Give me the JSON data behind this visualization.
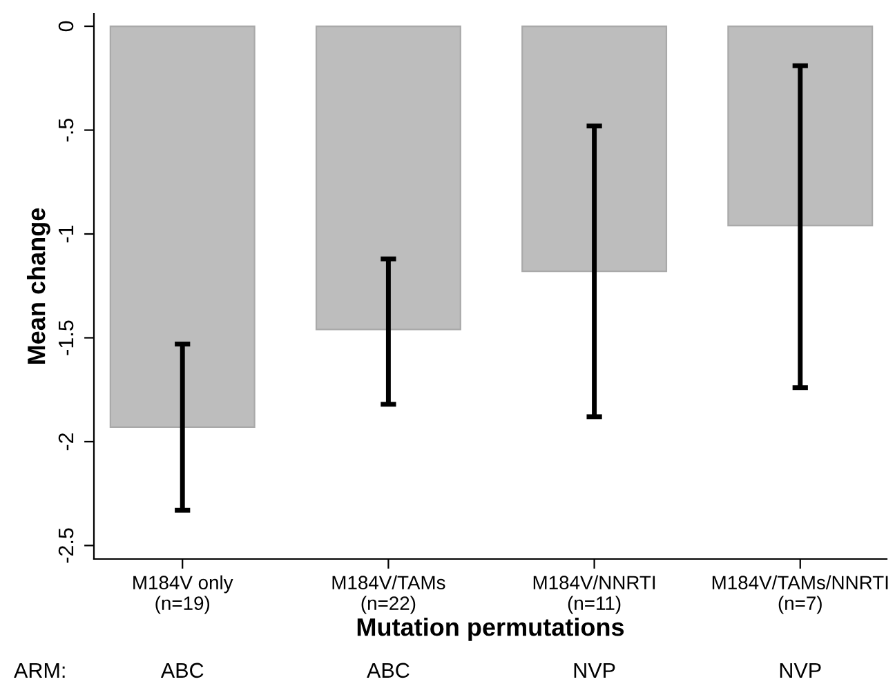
{
  "chart_data": {
    "type": "bar",
    "xlabel": "Mutation permutations",
    "ylabel": "Mean change",
    "categories": [
      "M184V only\n(n=19)",
      "M184V/TAMs\n(n=22)",
      "M184V/NNRTI\n(n=11)",
      "M184V/TAMs/NNRTI\n(n=7)"
    ],
    "values": [
      -1.93,
      -1.46,
      -1.18,
      -0.96
    ],
    "errors": [
      [
        -2.33,
        -1.53
      ],
      [
        -1.82,
        -1.12
      ],
      [
        -1.88,
        -0.48
      ],
      [
        -1.74,
        -0.19
      ]
    ],
    "color": "#bdbdbd",
    "ylim": [
      -2.565,
      0.06
    ],
    "yticks": [
      {
        "value": 0,
        "label": "0"
      },
      {
        "value": -0.5,
        "label": "-.5"
      },
      {
        "value": -1,
        "label": "-1"
      },
      {
        "value": -1.5,
        "label": "-1.5"
      },
      {
        "value": -2,
        "label": "-2"
      },
      {
        "value": -2.5,
        "label": "-2.5"
      }
    ],
    "grid": false,
    "legend": false,
    "annotations": [
      "ARM:",
      "ABC",
      "ABC",
      "NVP",
      "NVP"
    ]
  }
}
